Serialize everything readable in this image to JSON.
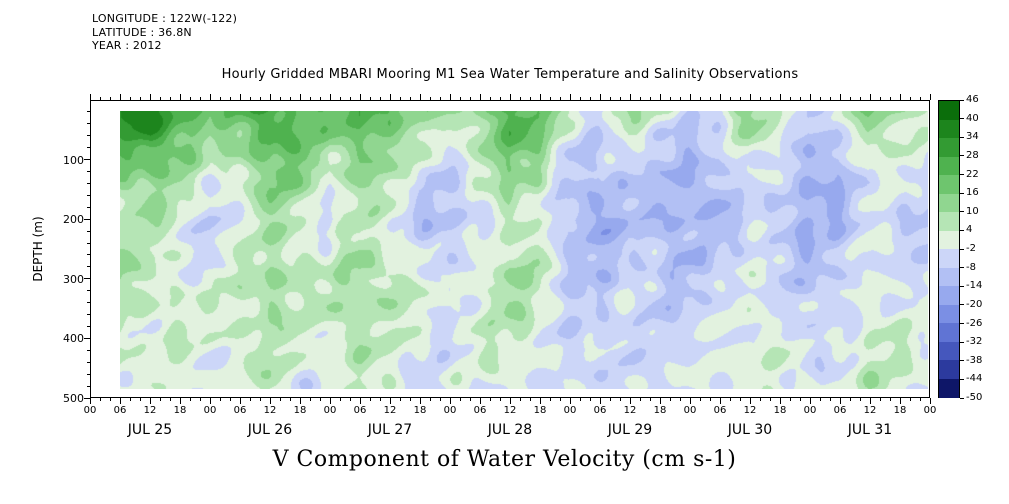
{
  "header": {
    "longitude": "LONGITUDE : 122W(-122)",
    "latitude": "LATITUDE : 36.8N",
    "year": "YEAR : 2012"
  },
  "title": "Hourly Gridded MBARI Mooring M1 Sea Water Temperature and Salinity Observations",
  "footer_title": "V Component of Water Velocity (cm s-1)",
  "chart_data": {
    "type": "heatmap",
    "title": "Hourly Gridded MBARI Mooring M1 Sea Water Temperature and Salinity Observations",
    "value_label": "V Component of Water Velocity (cm s-1)",
    "units": "cm s-1",
    "ylabel": "DEPTH (m)",
    "y_tick_labels": [
      "100",
      "200",
      "300",
      "400",
      "500"
    ],
    "y_range_m": [
      0,
      500
    ],
    "day_labels": [
      "JUL 25",
      "JUL 26",
      "JUL 27",
      "JUL 28",
      "JUL 29",
      "JUL 30",
      "JUL 31"
    ],
    "x_tick_labels": [
      "00",
      "06",
      "12",
      "18",
      "00",
      "06",
      "12",
      "18",
      "00",
      "06",
      "12",
      "18",
      "00",
      "06",
      "12",
      "18",
      "00",
      "06",
      "12",
      "18",
      "00",
      "06",
      "12",
      "18",
      "00",
      "06",
      "12",
      "18",
      "00"
    ],
    "colorbar": {
      "levels": [
        46,
        40,
        34,
        28,
        22,
        16,
        10,
        4,
        -2,
        -8,
        -14,
        -20,
        -26,
        -32,
        -38,
        -44,
        -50
      ],
      "colors": [
        "#0b6e0b",
        "#1d851d",
        "#339b33",
        "#4fb24f",
        "#6ec56e",
        "#90d690",
        "#b5e5b5",
        "#e2f2df",
        "#ccd6f8",
        "#b2c0f4",
        "#97a9ee",
        "#7b8fe4",
        "#6074d4",
        "#4557bd",
        "#2c3a9e",
        "#0e1668"
      ]
    },
    "grid": {
      "depths_m": [
        10,
        50,
        100,
        150,
        200,
        250,
        300,
        350,
        400,
        450,
        500
      ],
      "times_hours": [
        0,
        6,
        12,
        18,
        24,
        30,
        36,
        42,
        48,
        54,
        60,
        66,
        72,
        78,
        84,
        90,
        96,
        102,
        108,
        114,
        120,
        126,
        132,
        138,
        144,
        150,
        156,
        162,
        168
      ],
      "values": [
        [
          10,
          34,
          40,
          28,
          16,
          22,
          30,
          24,
          18,
          28,
          22,
          10,
          8,
          14,
          26,
          22,
          6,
          -4,
          8,
          4,
          -6,
          -2,
          14,
          10,
          -8,
          -4,
          16,
          12,
          4
        ],
        [
          6,
          28,
          34,
          22,
          10,
          16,
          26,
          20,
          12,
          22,
          16,
          6,
          2,
          10,
          22,
          18,
          0,
          -8,
          2,
          -2,
          -10,
          -6,
          8,
          4,
          -12,
          -8,
          10,
          6,
          0
        ],
        [
          2,
          18,
          22,
          12,
          4,
          8,
          20,
          16,
          6,
          16,
          10,
          0,
          -4,
          4,
          16,
          12,
          -6,
          -12,
          -4,
          -8,
          -14,
          -10,
          2,
          -2,
          -14,
          -12,
          4,
          0,
          -4
        ],
        [
          -2,
          10,
          12,
          6,
          -2,
          2,
          14,
          10,
          0,
          10,
          4,
          -6,
          -8,
          -2,
          10,
          6,
          -10,
          -14,
          -8,
          -12,
          -16,
          -12,
          -4,
          -6,
          -16,
          -14,
          -2,
          -4,
          -6
        ],
        [
          -4,
          6,
          8,
          2,
          -6,
          -2,
          8,
          6,
          -4,
          6,
          0,
          -8,
          -12,
          -6,
          6,
          2,
          -12,
          -16,
          -10,
          -14,
          -14,
          -10,
          -6,
          -8,
          -14,
          -12,
          -4,
          -6,
          -8
        ],
        [
          -2,
          8,
          4,
          0,
          -4,
          0,
          10,
          4,
          0,
          8,
          4,
          -4,
          -8,
          -2,
          8,
          4,
          -10,
          -12,
          -8,
          -10,
          -12,
          -8,
          -4,
          -6,
          -12,
          -10,
          -2,
          -4,
          -6
        ],
        [
          0,
          10,
          6,
          2,
          -2,
          4,
          12,
          6,
          4,
          12,
          8,
          0,
          -4,
          2,
          10,
          6,
          -8,
          -10,
          -6,
          -8,
          -10,
          -6,
          -2,
          -4,
          -10,
          -8,
          0,
          -2,
          -4
        ],
        [
          2,
          8,
          4,
          4,
          0,
          6,
          10,
          4,
          6,
          10,
          6,
          2,
          -2,
          4,
          8,
          4,
          -6,
          -8,
          -4,
          -6,
          -8,
          -4,
          0,
          -2,
          -8,
          -6,
          2,
          0,
          -2
        ],
        [
          0,
          6,
          2,
          2,
          2,
          4,
          8,
          2,
          4,
          8,
          4,
          0,
          -4,
          2,
          6,
          2,
          -6,
          -8,
          -4,
          -6,
          -6,
          -2,
          2,
          0,
          -6,
          -4,
          4,
          2,
          0
        ],
        [
          2,
          4,
          0,
          2,
          0,
          2,
          6,
          0,
          2,
          6,
          2,
          -2,
          -2,
          0,
          4,
          0,
          -4,
          -6,
          -2,
          -4,
          -4,
          0,
          4,
          2,
          -4,
          -2,
          6,
          4,
          2
        ],
        [
          0,
          2,
          -2,
          0,
          -2,
          0,
          4,
          -2,
          0,
          4,
          0,
          -4,
          -4,
          -2,
          2,
          -2,
          -6,
          -4,
          -4,
          -6,
          -2,
          2,
          2,
          0,
          -2,
          0,
          4,
          2,
          0
        ]
      ]
    }
  }
}
